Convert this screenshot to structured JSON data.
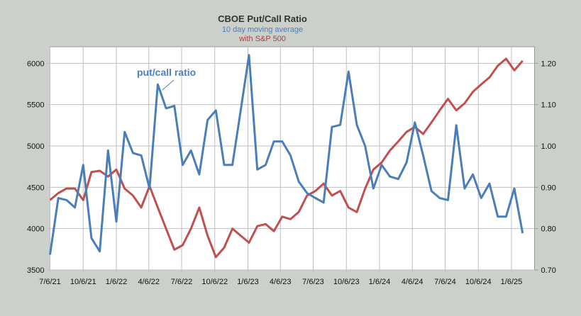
{
  "chart_data": {
    "type": "line",
    "title": "CBOE Put/Call Ratio",
    "subtitle": "10 day moving average",
    "subtitle2": "with S&P 500",
    "annotation": "put/call ratio",
    "xlim": [
      "2021-07-06",
      "2025-03-11"
    ],
    "x_ticks": [
      "7/6/21",
      "10/6/21",
      "1/6/22",
      "4/6/22",
      "7/6/22",
      "10/6/22",
      "1/6/23",
      "4/6/23",
      "7/6/23",
      "10/6/23",
      "1/6/24",
      "4/6/24",
      "7/6/24",
      "10/6/24",
      "1/6/25"
    ],
    "y_left": {
      "lim": [
        3500,
        6200
      ],
      "ticks": [
        "3500",
        "4000",
        "4500",
        "5000",
        "5500",
        "6000"
      ]
    },
    "y_right": {
      "lim": [
        0.7,
        1.24
      ],
      "ticks": [
        "0.70",
        "0.80",
        "0.90",
        "1.00",
        "1.10",
        "1.20"
      ]
    },
    "grid": true,
    "sampling": {
      "start": "2021-07-06",
      "step_days": 23
    },
    "series": [
      {
        "name": "S&P 500",
        "axis": "left",
        "color": "#c0504d",
        "values": [
          4345,
          4430,
          4485,
          4485,
          4345,
          4685,
          4700,
          4630,
          4715,
          4485,
          4400,
          4255,
          4515,
          4255,
          4000,
          3745,
          3800,
          4000,
          4255,
          3915,
          3655,
          3770,
          4000,
          3915,
          3830,
          4030,
          4055,
          3970,
          4145,
          4115,
          4200,
          4400,
          4455,
          4545,
          4400,
          4455,
          4255,
          4200,
          4485,
          4715,
          4800,
          4945,
          5055,
          5170,
          5230,
          5145,
          5285,
          5430,
          5570,
          5430,
          5515,
          5655,
          5745,
          5830,
          5970,
          6055,
          5915,
          6030
        ]
      },
      {
        "name": "put/call ratio",
        "axis": "right",
        "color": "#4a7ebb",
        "values": [
          0.737,
          0.874,
          0.869,
          0.851,
          0.954,
          0.777,
          0.745,
          0.989,
          0.817,
          1.034,
          0.983,
          0.977,
          0.897,
          1.149,
          1.091,
          1.097,
          0.954,
          0.989,
          0.931,
          1.063,
          1.086,
          0.954,
          0.954,
          1.086,
          1.22,
          0.943,
          0.954,
          1.011,
          1.011,
          0.977,
          0.914,
          0.886,
          0.874,
          0.863,
          1.046,
          1.051,
          1.18,
          1.051,
          1.0,
          0.897,
          0.954,
          0.926,
          0.92,
          0.96,
          1.057,
          0.977,
          0.891,
          0.874,
          0.869,
          1.05,
          0.897,
          0.931,
          0.874,
          0.909,
          0.829,
          0.829,
          0.897,
          0.789
        ]
      }
    ]
  }
}
